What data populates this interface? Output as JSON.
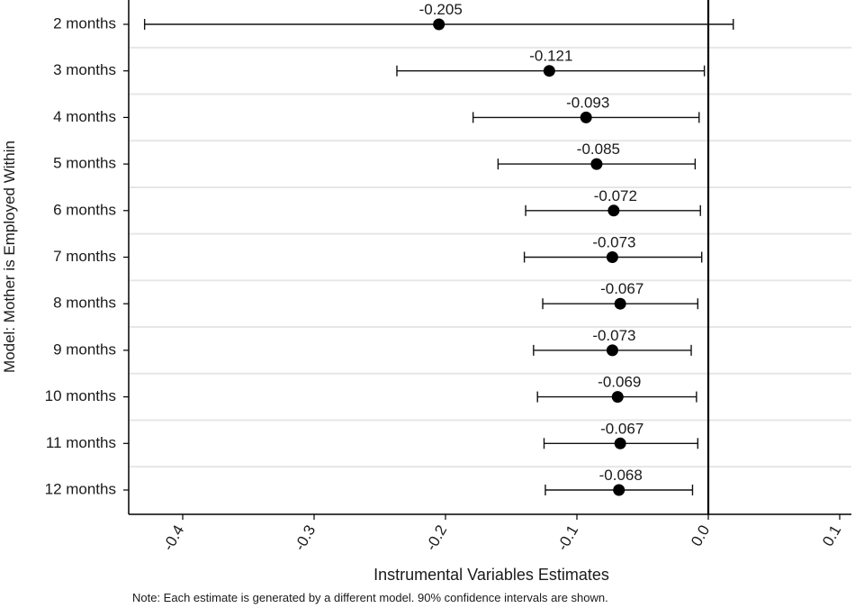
{
  "chart_data": {
    "type": "scatter",
    "subtype": "coefficient plot with confidence intervals",
    "xlabel": "Instrumental Variables Estimates",
    "ylabel": "Model: Mother is Employed Within",
    "note": "Note: Each estimate is generated by a different model. 90% confidence intervals are shown.",
    "xlim": [
      -0.44,
      0.1
    ],
    "x_ticks": [
      -0.4,
      -0.3,
      -0.2,
      -0.1,
      0.0,
      0.1
    ],
    "x_tick_labels": [
      "-0.4",
      "-0.3",
      "-0.2",
      "-0.1",
      "0.0",
      "0.1"
    ],
    "reference_line_x": 0.0,
    "grid": "horizontal",
    "categories": [
      "2 months",
      "3 months",
      "4 months",
      "5 months",
      "6 months",
      "7 months",
      "8 months",
      "9 months",
      "10 months",
      "11 months",
      "12 months"
    ],
    "estimates": [
      -0.205,
      -0.121,
      -0.093,
      -0.085,
      -0.072,
      -0.073,
      -0.067,
      -0.073,
      -0.069,
      -0.067,
      -0.068
    ],
    "labels": [
      "-0.205",
      "-0.121",
      "-0.093",
      "-0.085",
      "-0.072",
      "-0.073",
      "-0.067",
      "-0.073",
      "-0.069",
      "-0.067",
      "-0.068"
    ],
    "ci_low": [
      -0.429,
      -0.237,
      -0.179,
      -0.16,
      -0.139,
      -0.14,
      -0.126,
      -0.133,
      -0.13,
      -0.125,
      -0.124
    ],
    "ci_high": [
      0.019,
      -0.003,
      -0.007,
      -0.01,
      -0.006,
      -0.005,
      -0.008,
      -0.013,
      -0.009,
      -0.008,
      -0.012
    ]
  }
}
